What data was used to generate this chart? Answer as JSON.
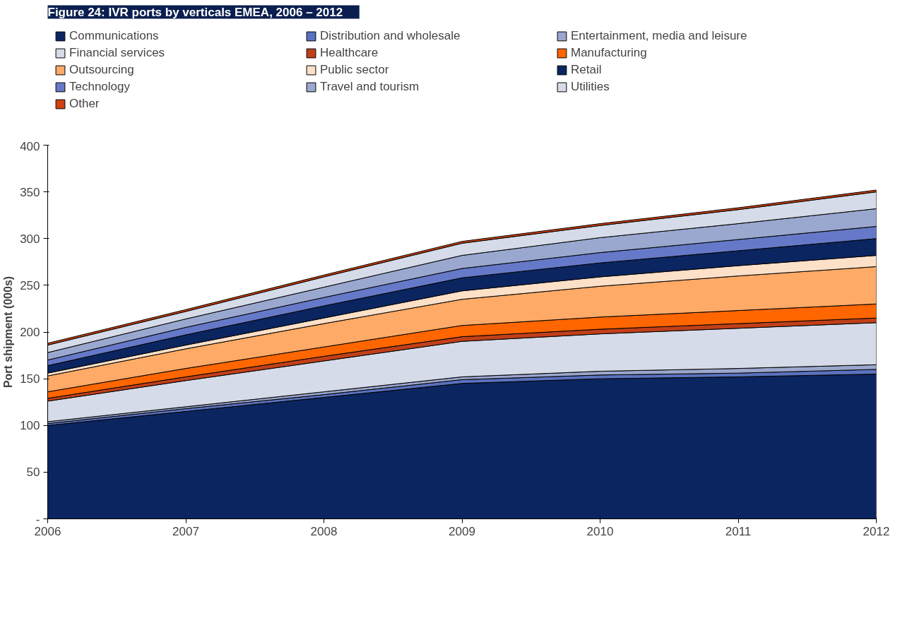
{
  "chart_data": {
    "type": "area",
    "stacked": true,
    "title": "Figure 24:      IVR ports by verticals EMEA, 2006 – 2012",
    "ylabel": "Port shipment (000s)",
    "x": [
      2006,
      2007,
      2008,
      2009,
      2010,
      2011,
      2012
    ],
    "xlim": [
      2006,
      2012
    ],
    "xticks": [
      2006,
      2007,
      2008,
      2009,
      2010,
      2011,
      2012
    ],
    "ylim": [
      0,
      400
    ],
    "yticks": [
      {
        "value": 0,
        "label": "-"
      },
      50,
      100,
      150,
      200,
      250,
      300,
      350,
      400
    ],
    "grid": false,
    "legend": "top",
    "series": [
      {
        "name": "Communications",
        "color": "#0b2560",
        "values": [
          100,
          115,
          130,
          145,
          150,
          152,
          155
        ]
      },
      {
        "name": "Distribution and wholesale",
        "color": "#5a72c0",
        "values": [
          2,
          3,
          3,
          4,
          4,
          4,
          5
        ]
      },
      {
        "name": "Entertainment, media and leisure",
        "color": "#9aa6cc",
        "values": [
          2,
          2,
          3,
          3,
          4,
          5,
          5
        ]
      },
      {
        "name": "Financial services",
        "color": "#d5dbe8",
        "values": [
          22,
          28,
          33,
          38,
          40,
          43,
          45
        ]
      },
      {
        "name": "Healthcare",
        "color": "#c0401a",
        "values": [
          3,
          4,
          5,
          5,
          5,
          5,
          5
        ]
      },
      {
        "name": "Manufacturing",
        "color": "#ff6600",
        "values": [
          7,
          9,
          10,
          12,
          13,
          14,
          15
        ]
      },
      {
        "name": "Outsourcing",
        "color": "#ffaa66",
        "values": [
          17,
          21,
          25,
          28,
          33,
          37,
          40
        ]
      },
      {
        "name": "Public sector",
        "color": "#fde0c8",
        "values": [
          3,
          4,
          6,
          9,
          10,
          11,
          12
        ]
      },
      {
        "name": "Retail",
        "color": "#0b2560",
        "values": [
          8,
          11,
          13,
          14,
          15,
          16,
          18
        ]
      },
      {
        "name": "Technology",
        "color": "#6679c8",
        "values": [
          6,
          8,
          9,
          10,
          11,
          12,
          13
        ]
      },
      {
        "name": "Travel and tourism",
        "color": "#9aa8d0",
        "values": [
          8,
          9,
          11,
          14,
          16,
          17,
          19
        ]
      },
      {
        "name": "Utilities",
        "color": "#d5dbe8",
        "values": [
          8,
          8,
          11,
          13,
          13,
          15,
          18
        ]
      },
      {
        "name": "Other",
        "color": "#d04010",
        "values": [
          2,
          2,
          2,
          2,
          2,
          2,
          2
        ]
      }
    ]
  }
}
